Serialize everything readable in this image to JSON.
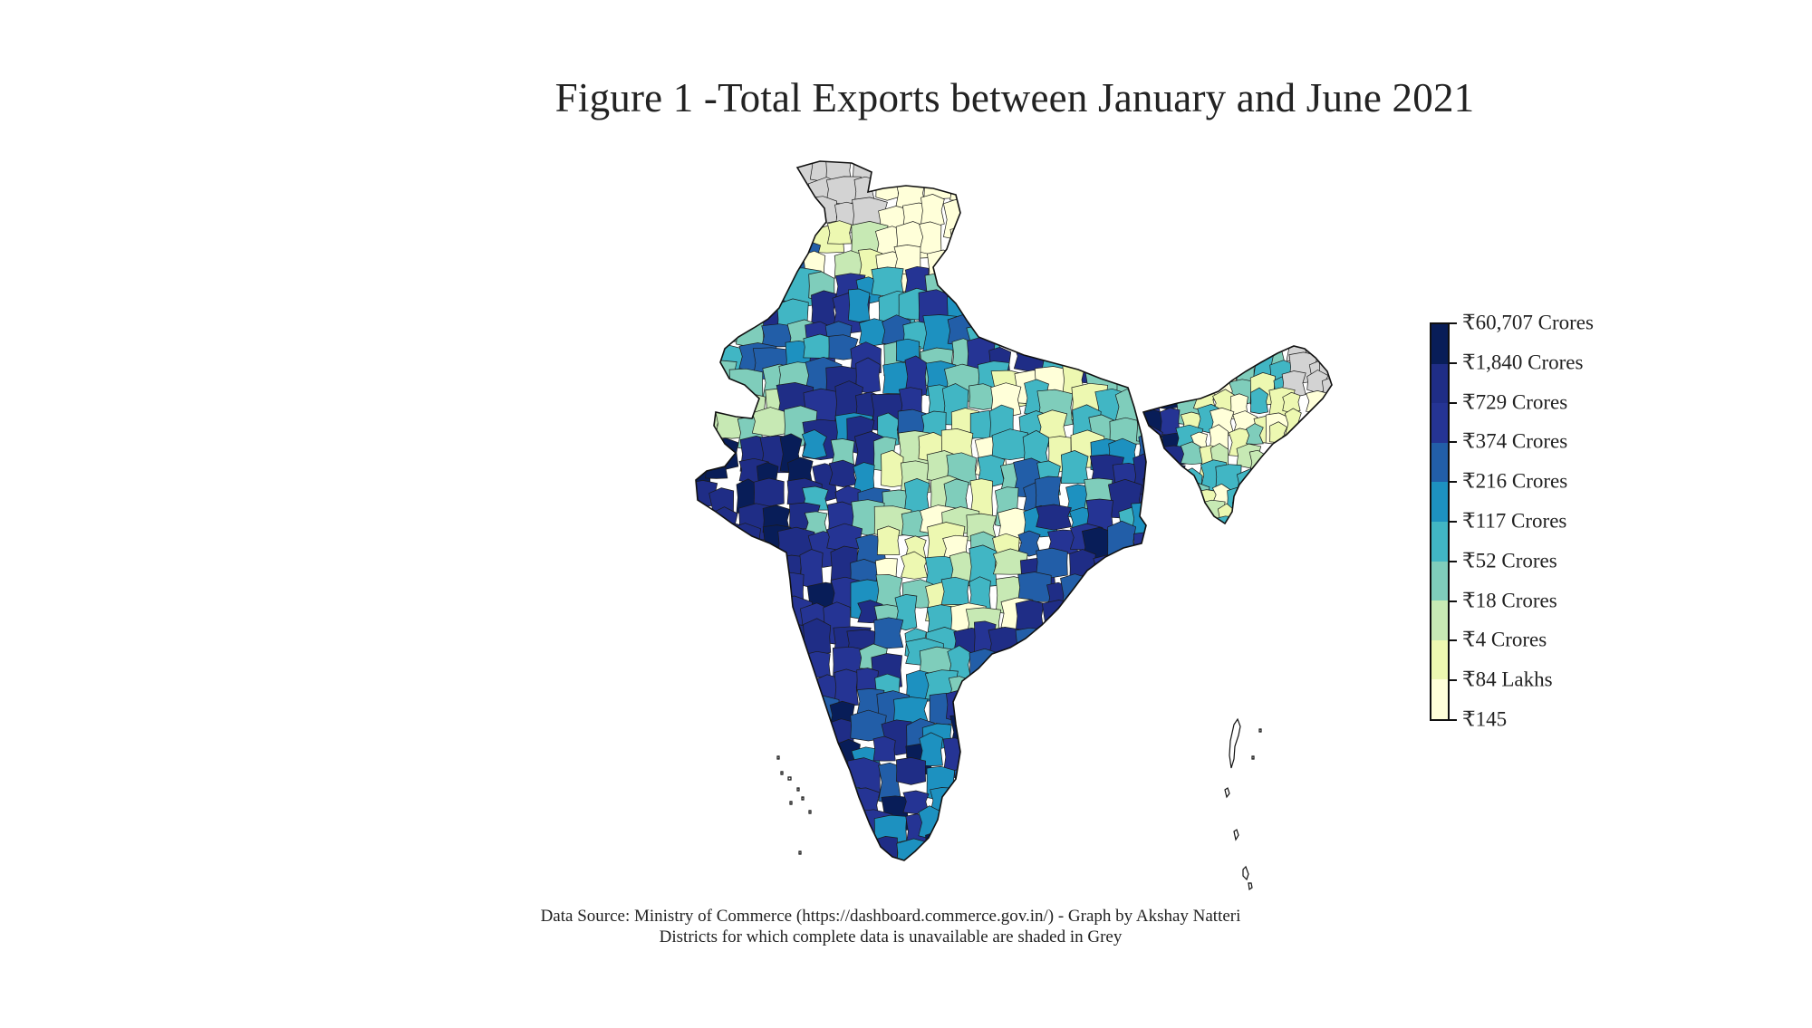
{
  "title": "Figure 1 -Total Exports between January and June 2021",
  "legend": {
    "labels": [
      "₹145",
      "₹84 Lakhs",
      "₹4 Crores",
      "₹18 Crores",
      "₹52 Crores",
      "₹117 Crores",
      "₹216 Crores",
      "₹374 Crores",
      "₹729 Crores",
      "₹1,840 Crores",
      "₹60,707 Crores"
    ],
    "colors": [
      "#ffffd9",
      "#edf8b1",
      "#c7e9b4",
      "#7fcdbb",
      "#41b6c4",
      "#1d91c0",
      "#225ea8",
      "#253494",
      "#1f2d86",
      "#081d58"
    ],
    "missing_data_color": "#d3d3d3"
  },
  "source": {
    "line1": "Data Source:  Ministry of Commerce (https://dashboard.commerce.gov.in/) - Graph by Akshay Natteri",
    "line2": "Districts for which complete data is unavailable are shaded in Grey"
  }
}
